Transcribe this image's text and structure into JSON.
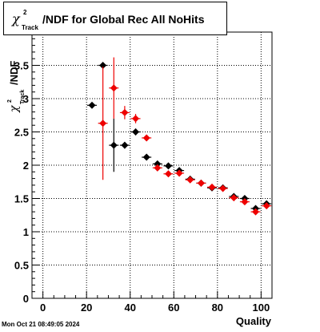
{
  "chart_data": {
    "type": "scatter",
    "title": {
      "symbol": "χ",
      "superscript": "2",
      "subscript": "Track",
      "text": "/NDF for Global Rec All NoHits"
    },
    "xlabel": "Quality",
    "ylabel": {
      "symbol": "χ",
      "superscript": "2",
      "subscript": "Track",
      "text": "/NDF"
    },
    "xlim": [
      -5,
      105
    ],
    "ylim": [
      0,
      4
    ],
    "xticks": [
      0,
      20,
      40,
      60,
      80,
      100
    ],
    "yticks": [
      0,
      0.5,
      1,
      1.5,
      2,
      2.5,
      3,
      3.5
    ],
    "grid": true,
    "series": [
      {
        "color": "#000000",
        "points": [
          {
            "x": 22.5,
            "y": 2.9,
            "err": 0
          },
          {
            "x": 27.5,
            "y": 3.5,
            "err": 0
          },
          {
            "x": 32.5,
            "y": 2.3,
            "err": 0.4
          },
          {
            "x": 37.5,
            "y": 2.3,
            "err": 0.05
          },
          {
            "x": 42.5,
            "y": 2.5,
            "err": 0.05
          },
          {
            "x": 47.5,
            "y": 2.12,
            "err": 0.02
          },
          {
            "x": 52.5,
            "y": 2.02,
            "err": 0.02
          },
          {
            "x": 57.5,
            "y": 1.99,
            "err": 0.02
          },
          {
            "x": 62.5,
            "y": 1.92,
            "err": 0.02
          },
          {
            "x": 67.5,
            "y": 1.79,
            "err": 0.02
          },
          {
            "x": 72.5,
            "y": 1.73,
            "err": 0.02
          },
          {
            "x": 77.5,
            "y": 1.66,
            "err": 0.02
          },
          {
            "x": 82.5,
            "y": 1.66,
            "err": 0.02
          },
          {
            "x": 87.5,
            "y": 1.53,
            "err": 0.02
          },
          {
            "x": 92.5,
            "y": 1.5,
            "err": 0.02
          },
          {
            "x": 97.5,
            "y": 1.35,
            "err": 0.02
          },
          {
            "x": 102.5,
            "y": 1.42,
            "err": 0.02
          }
        ]
      },
      {
        "color": "#ee0000",
        "points": [
          {
            "x": 27.5,
            "y": 2.63,
            "err": 0.85
          },
          {
            "x": 32.5,
            "y": 3.16,
            "err": 0.46
          },
          {
            "x": 37.5,
            "y": 2.79,
            "err": 0.1
          },
          {
            "x": 42.5,
            "y": 2.7,
            "err": 0.07
          },
          {
            "x": 47.5,
            "y": 2.41,
            "err": 0.03
          },
          {
            "x": 52.5,
            "y": 1.96,
            "err": 0.02
          },
          {
            "x": 57.5,
            "y": 1.87,
            "err": 0.02
          },
          {
            "x": 62.5,
            "y": 1.88,
            "err": 0.02
          },
          {
            "x": 67.5,
            "y": 1.78,
            "err": 0.02
          },
          {
            "x": 72.5,
            "y": 1.73,
            "err": 0.02
          },
          {
            "x": 77.5,
            "y": 1.67,
            "err": 0.02
          },
          {
            "x": 82.5,
            "y": 1.65,
            "err": 0.02
          },
          {
            "x": 87.5,
            "y": 1.51,
            "err": 0.02
          },
          {
            "x": 92.5,
            "y": 1.45,
            "err": 0.02
          },
          {
            "x": 97.5,
            "y": 1.3,
            "err": 0.02
          },
          {
            "x": 102.5,
            "y": 1.39,
            "err": 0.02
          }
        ]
      }
    ]
  },
  "footer": {
    "timestamp": "Mon Oct 21 08:49:05 2024"
  }
}
